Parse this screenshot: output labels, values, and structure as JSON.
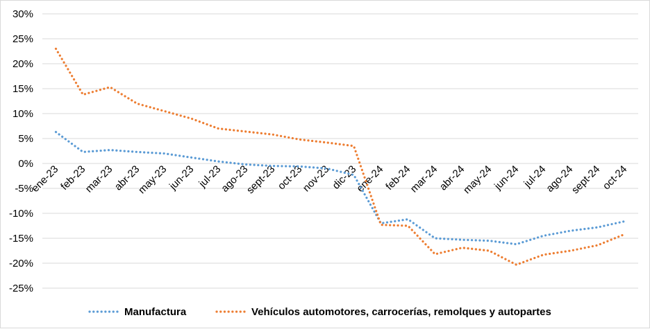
{
  "chart_data": {
    "type": "line",
    "title": "",
    "xlabel": "",
    "ylabel": "",
    "categories": [
      "ene-23",
      "feb-23",
      "mar-23",
      "abr-23",
      "may-23",
      "jun-23",
      "jul-23",
      "ago-23",
      "sept-23",
      "oct-23",
      "nov-23",
      "dic-23",
      "ene-24",
      "feb-24",
      "mar-24",
      "abr-24",
      "may-24",
      "jun-24",
      "jul-24",
      "ago-24",
      "sept-24",
      "oct-24"
    ],
    "y_ticks": [
      "-25%",
      "-20%",
      "-15%",
      "-10%",
      "-5%",
      "0%",
      "5%",
      "10%",
      "15%",
      "20%",
      "25%",
      "30%"
    ],
    "ylim": [
      -25,
      30
    ],
    "unit": "%",
    "grid": true,
    "legend_position": "bottom",
    "series": [
      {
        "name": "Manufactura",
        "color": "#5b9bd5",
        "values": [
          6.3,
          2.3,
          2.7,
          2.3,
          2.0,
          1.2,
          0.4,
          -0.2,
          -0.5,
          -0.6,
          -1.0,
          -2.3,
          -12.0,
          -11.2,
          -15.0,
          -15.3,
          -15.5,
          -16.2,
          -14.5,
          -13.5,
          -12.8,
          -11.6
        ]
      },
      {
        "name": "Vehículos automotores, carrocerías, remolques y autopartes",
        "color": "#ed7d31",
        "values": [
          23.0,
          13.8,
          15.3,
          12.0,
          10.5,
          9.0,
          7.0,
          6.4,
          5.8,
          4.8,
          4.2,
          3.5,
          -12.3,
          -12.5,
          -18.2,
          -16.9,
          -17.5,
          -20.3,
          -18.3,
          -17.5,
          -16.4,
          -14.2
        ]
      }
    ]
  }
}
